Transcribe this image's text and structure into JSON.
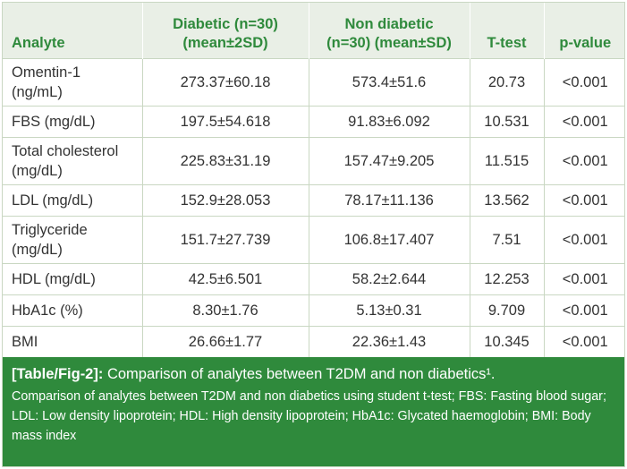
{
  "table": {
    "headers": [
      [
        "Analyte"
      ],
      [
        "Diabetic (n=30)",
        "(mean±2SD)"
      ],
      [
        "Non diabetic",
        "(n=30) (mean±SD)"
      ],
      [
        "T-test"
      ],
      [
        "p-value"
      ]
    ],
    "rows": [
      {
        "analyte": [
          "Omentin-1",
          "(ng/mL)"
        ],
        "diabetic": "273.37±60.18",
        "non_diabetic": "573.4±51.6",
        "t_test": "20.73",
        "p_value": "<0.001"
      },
      {
        "analyte": [
          "FBS (mg/dL)"
        ],
        "diabetic": "197.5±54.618",
        "non_diabetic": "91.83±6.092",
        "t_test": "10.531",
        "p_value": "<0.001"
      },
      {
        "analyte": [
          "Total cholesterol",
          "(mg/dL)"
        ],
        "diabetic": "225.83±31.19",
        "non_diabetic": "157.47±9.205",
        "t_test": "11.515",
        "p_value": "<0.001"
      },
      {
        "analyte": [
          "LDL (mg/dL)"
        ],
        "diabetic": "152.9±28.053",
        "non_diabetic": "78.17±11.136",
        "t_test": "13.562",
        "p_value": "<0.001"
      },
      {
        "analyte": [
          "Triglyceride",
          "(mg/dL)"
        ],
        "diabetic": "151.7±27.739",
        "non_diabetic": "106.8±17.407",
        "t_test": "7.51",
        "p_value": "<0.001"
      },
      {
        "analyte": [
          "HDL (mg/dL)"
        ],
        "diabetic": "42.5±6.501",
        "non_diabetic": "58.2±2.644",
        "t_test": "12.253",
        "p_value": "<0.001"
      },
      {
        "analyte": [
          "HbA1c (%)"
        ],
        "diabetic": "8.30±1.76",
        "non_diabetic": "5.13±0.31",
        "t_test": "9.709",
        "p_value": "<0.001"
      },
      {
        "analyte": [
          "BMI"
        ],
        "diabetic": "26.66±1.77",
        "non_diabetic": "22.36±1.43",
        "t_test": "10.345",
        "p_value": "<0.001"
      }
    ]
  },
  "caption": {
    "tag": "[Table/Fig-2]:",
    "title": "Comparison of analytes between T2DM and non diabetics¹.",
    "note": "Comparison of analytes between T2DM and non diabetics using student t-test; FBS: Fasting blood sugar; LDL: Low density lipoprotein; HDL: High density lipoprotein; HbA1c: Glycated haemoglobin; BMI: Body mass index"
  },
  "colors": {
    "header_text": "#2f8a3c",
    "header_bg": "#e9efe6",
    "caption_bg": "#2f8a3c",
    "grid": "#c9d7c2"
  }
}
